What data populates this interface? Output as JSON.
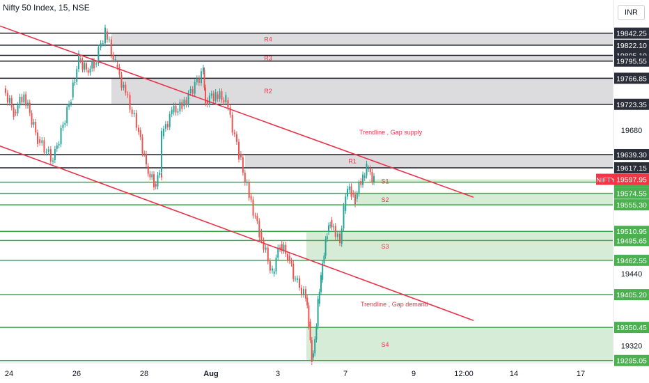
{
  "header": {
    "title": "Nifty 50 Index, 15, NSE",
    "currency": "INR"
  },
  "chart_data": {
    "type": "candlestick",
    "symbol_tag": "NIFTY",
    "ylim": [
      19290,
      19860
    ],
    "y_ticks": [
      19680,
      19440,
      19320
    ],
    "x_ticks": [
      "24",
      "26",
      "28",
      "Aug",
      "3",
      "7",
      "9",
      "12:00",
      "14",
      "17"
    ],
    "resistance": [
      {
        "name": "R4",
        "top": 19842.25,
        "bottom": 19822.1
      },
      {
        "name": "R3",
        "top": 19805.1,
        "bottom": 19795.55
      },
      {
        "name": "R2",
        "top": 19766.85,
        "bottom": 19723.35
      },
      {
        "name": "R1",
        "top": 19639.3,
        "bottom": 19617.15
      }
    ],
    "support": [
      {
        "name": "S1",
        "top": 19597.95,
        "bottom": 19593.2
      },
      {
        "name": "S2",
        "top": 19574.55,
        "bottom": 19555.3
      },
      {
        "name": "S3",
        "top": 19510.95,
        "bottom": 19462.55
      },
      {
        "name": "S4",
        "top": 19350.45,
        "bottom": 19295.05
      }
    ],
    "level_labels": [
      "19842.25",
      "19822.10",
      "19805.10",
      "19795.55",
      "19766.85",
      "19723.35",
      "19639.30",
      "19617.15",
      "19593.20",
      "19574.55",
      "19555.30",
      "19510.95",
      "19495.65",
      "19462.55",
      "19405.20",
      "19350.45",
      "19295.05"
    ],
    "last_price": "19597.95",
    "trendlines": [
      {
        "label": "Trendline , Gap supply",
        "from": [
          "Jul 22",
          19890
        ],
        "to": [
          "Aug 8",
          19568
        ]
      },
      {
        "label": "Trendline , Gap demand",
        "from": [
          "Jul 22",
          19690
        ],
        "to": [
          "Aug 8",
          19362
        ]
      }
    ],
    "price_path": [
      [
        "Jul 24",
        19750
      ],
      [
        "Jul 24",
        19710
      ],
      [
        "Jul 24",
        19740
      ],
      [
        "Jul 25",
        19665
      ],
      [
        "Jul 25",
        19630
      ],
      [
        "Jul 26",
        19735
      ],
      [
        "Jul 26",
        19800
      ],
      [
        "Jul 26",
        19780
      ],
      [
        "Jul 26",
        19790
      ],
      [
        "Jul 27",
        19845
      ],
      [
        "Jul 27",
        19790
      ],
      [
        "Jul 27",
        19740
      ],
      [
        "Jul 28",
        19680
      ],
      [
        "Jul 28",
        19620
      ],
      [
        "Jul 28",
        19590
      ],
      [
        "Jul 28",
        19610
      ],
      [
        "Jul 29",
        19670
      ],
      [
        "Jul 29",
        19710
      ],
      [
        "Jul 29",
        19720
      ],
      [
        "Jul 31",
        19780
      ],
      [
        "Aug 1",
        19730
      ],
      [
        "Aug 1",
        19740
      ],
      [
        "Aug 1",
        19730
      ],
      [
        "Aug 2",
        19640
      ],
      [
        "Aug 2",
        19570
      ],
      [
        "Aug 2",
        19510
      ],
      [
        "Aug 3",
        19440
      ],
      [
        "Aug 3",
        19490
      ],
      [
        "Aug 3",
        19470
      ],
      [
        "Aug 3",
        19430
      ],
      [
        "Aug 4",
        19400
      ],
      [
        "Aug 4",
        19360
      ],
      [
        "Aug 4",
        19300
      ],
      [
        "Aug 4",
        19330
      ],
      [
        "Aug 4",
        19390
      ],
      [
        "Aug 4",
        19430
      ],
      [
        "Aug 4",
        19470
      ],
      [
        "Aug 4",
        19510
      ],
      [
        "Aug 4",
        19530
      ],
      [
        "Aug 4",
        19520
      ],
      [
        "Aug 7",
        19490
      ],
      [
        "Aug 7",
        19545
      ],
      [
        "Aug 7",
        19580
      ],
      [
        "Aug 7",
        19575
      ],
      [
        "Aug 7",
        19565
      ],
      [
        "Aug 7",
        19595
      ],
      [
        "Aug 7",
        19600
      ],
      [
        "Aug 7",
        19615
      ],
      [
        "Aug 8",
        19598
      ]
    ],
    "colors": {
      "up": "#26a69a",
      "down": "#ef5350",
      "resistance_fill": "#dcdcde",
      "support_fill": "#d6ecd6",
      "support_line": "#35a84a",
      "level_line": "#1c1e26",
      "trend": "#e8334a",
      "zone_text": "#e8334a",
      "last_price_bg": "#f23645",
      "level_label_dark": "#2a2e39",
      "level_label_green": "#4caf50"
    }
  }
}
